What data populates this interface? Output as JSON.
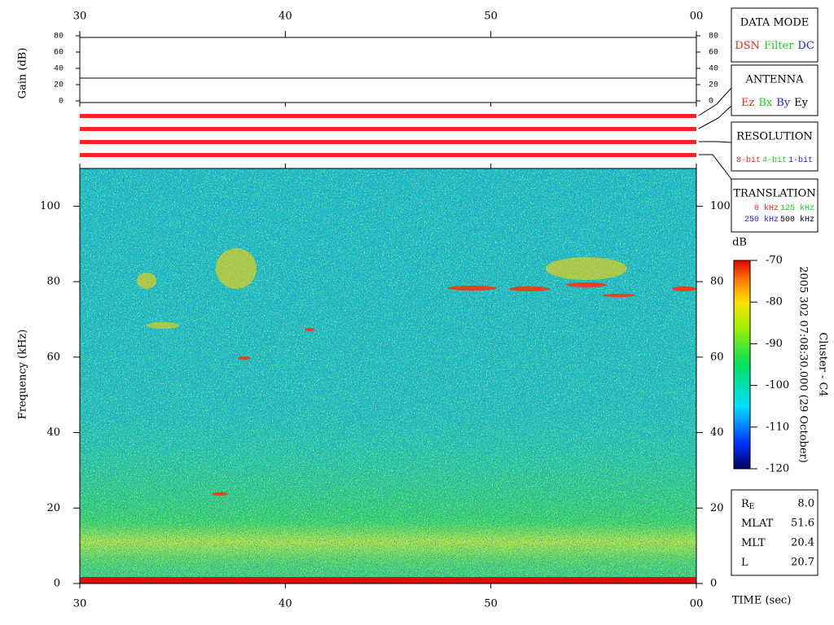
{
  "chart_data": {
    "type": "spectrogram",
    "xlabel": "TIME (sec)",
    "ylabel": "Frequency (kHz)",
    "xlim": [
      30,
      60
    ],
    "xticks": [
      30,
      40,
      50,
      {
        "value": 60,
        "label": "00"
      }
    ],
    "ylim": [
      0,
      110
    ],
    "yticks": [
      0,
      20,
      40,
      60,
      80,
      100
    ],
    "gain": {
      "ylabel": "Gain (dB)",
      "ylim": [
        0,
        80
      ],
      "yticks": [
        0,
        20,
        40,
        60,
        80
      ],
      "level": 28
    },
    "colorbar": {
      "label": "dB",
      "lim": [
        -120,
        -70
      ],
      "ticks": [
        -70,
        -80,
        -90,
        -100,
        -110,
        -120
      ]
    },
    "timestamp": "2005 302 07:08:30.000 (29 October)",
    "spacecraft": "Cluster - C4",
    "panels": [
      {
        "title": "DATA MODE",
        "items": [
          {
            "text": "DSN",
            "color": "#ff2020"
          },
          {
            "text": "Filter",
            "color": "#20d020"
          },
          {
            "text": "DC",
            "color": "#2020ff"
          }
        ]
      },
      {
        "title": "ANTENNA",
        "items": [
          {
            "text": "Ez",
            "color": "#ff2020"
          },
          {
            "text": "Bx",
            "color": "#20d020"
          },
          {
            "text": "By",
            "color": "#2020ff"
          },
          {
            "text": "Ey",
            "color": "#000000"
          }
        ]
      },
      {
        "title": "RESOLUTION",
        "items": [
          {
            "text": "8-bit",
            "color": "#ff2020"
          },
          {
            "text": "4-bit",
            "color": "#20d020"
          },
          {
            "text": "1-bit",
            "color": "#2020ff"
          }
        ]
      },
      {
        "title": "TRANSLATION",
        "items": [
          {
            "text": "0 kHz",
            "color": "#ff2020"
          },
          {
            "text": "125 kHz",
            "color": "#20d020"
          },
          {
            "text": "250 kHz",
            "color": "#2020ff"
          },
          {
            "text": "500 kHz",
            "color": "#000000"
          }
        ]
      }
    ],
    "info": [
      {
        "label": "R",
        "sub": "E",
        "value": "8.0"
      },
      {
        "label": "MLAT",
        "value": "51.6"
      },
      {
        "label": "MLT",
        "value": "20.4"
      },
      {
        "label": "L",
        "value": "20.7"
      }
    ]
  }
}
